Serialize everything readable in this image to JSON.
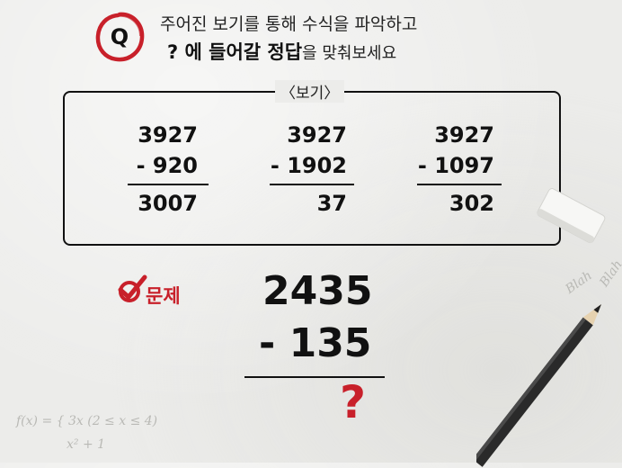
{
  "header": {
    "badge_letter": "Q",
    "line1": "주어진 보기를 통해 수식을 파악하고",
    "line2_strong": "? 에 들어갈 정답",
    "line2_normal": "을 맞춰보세요"
  },
  "examples": {
    "label": "〈보기〉",
    "items": [
      {
        "top": "3927",
        "sub": "- 920",
        "result": "3007"
      },
      {
        "top": "3927",
        "sub": "- 1902",
        "result": "37"
      },
      {
        "top": "3927",
        "sub": "- 1097",
        "result": "302"
      }
    ]
  },
  "problem": {
    "label": "문제",
    "top": "2435",
    "sub": "- 135",
    "answer": "?"
  },
  "doodles": {
    "blah1": "Blah",
    "blah2": "Blah",
    "formula_line1": "f(x) = { 3x (2 ≤ x ≤ 4)",
    "formula_line2": "x² + 1"
  },
  "colors": {
    "accent": "#c8202a",
    "ink": "#111111",
    "paper": "#ececea"
  }
}
